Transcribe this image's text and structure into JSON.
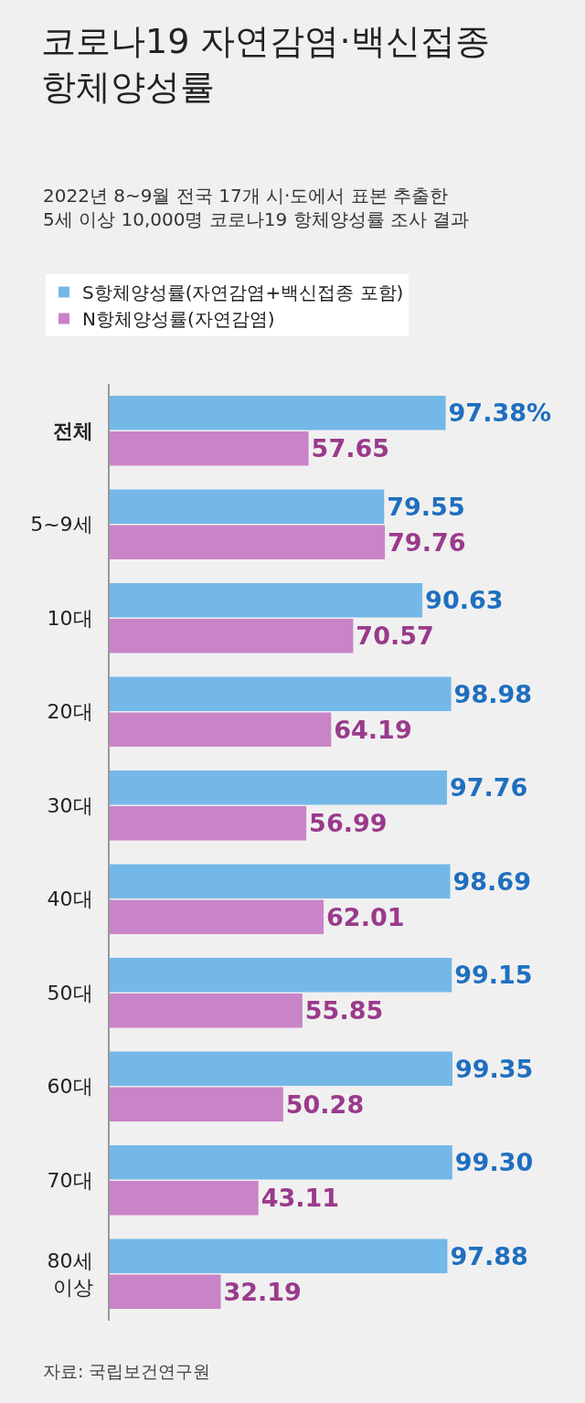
{
  "chart_data": {
    "type": "bar",
    "orientation": "horizontal",
    "title": "코로나19 자연감염·백신접종 항체양성률",
    "subtitle": "2022년 8~9월 전국 17개 시·도에서 표본 추출한\n5세 이상 10,000명 코로나19 항체양성률 조사 결과",
    "categories": [
      "전체",
      "5~9세",
      "10대",
      "20대",
      "30대",
      "40대",
      "50대",
      "60대",
      "70대",
      "80세 이상"
    ],
    "series": [
      {
        "name": "S항체양성률(자연감염+백신접종 포함)",
        "color": "#74b8e8",
        "values": [
          97.38,
          79.55,
          90.63,
          98.98,
          97.76,
          98.69,
          99.15,
          99.35,
          99.3,
          97.88
        ],
        "value_labels": [
          "97.38%",
          "79.55",
          "90.63",
          "98.98",
          "97.76",
          "98.69",
          "99.15",
          "99.35",
          "99.30",
          "97.88"
        ]
      },
      {
        "name": "N항체양성률(자연감염)",
        "color": "#c984c8",
        "values": [
          57.65,
          79.76,
          70.57,
          64.19,
          56.99,
          62.01,
          55.85,
          50.28,
          43.11,
          32.19
        ],
        "value_labels": [
          "57.65",
          "79.76",
          "70.57",
          "64.19",
          "56.99",
          "62.01",
          "55.85",
          "50.28",
          "43.11",
          "32.19"
        ]
      }
    ],
    "annotations": [
      "자료: 국립보건연구원"
    ],
    "legend": "top left"
  }
}
